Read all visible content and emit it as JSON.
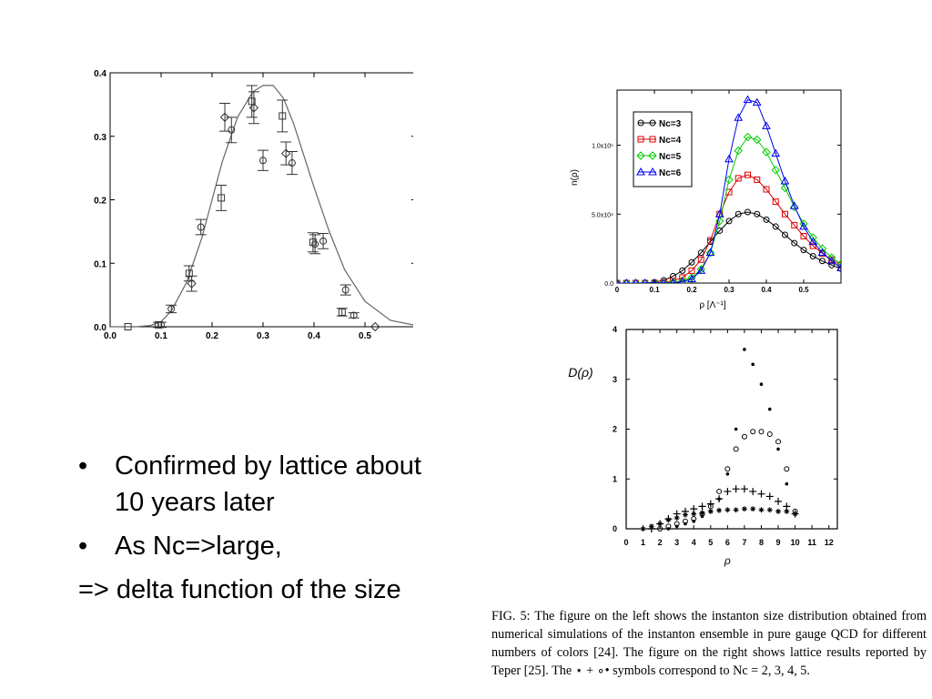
{
  "bullets": {
    "items": [
      "Confirmed by lattice about 10 years later",
      "As Nc=>large,"
    ],
    "tail": "=> delta function of the size"
  },
  "caption": "FIG. 5: The figure on the left shows the instanton size distribution obtained from numerical simulations of the instanton ensemble in pure gauge QCD for different numbers of colors [24]. The figure on the right shows lattice results reported by Teper [25]. The ⋆ + ∘• symbols correspond to Nc = 2, 3, 4, 5.",
  "chart_data": [
    {
      "type": "scatter",
      "title": "",
      "xlabel": "",
      "ylabel": "",
      "xlim": [
        0,
        0.6
      ],
      "ylim": [
        0,
        0.4
      ],
      "xticks": [
        "0.0",
        "0.1",
        "0.2",
        "0.3",
        "0.4",
        "0.5"
      ],
      "yticks": [
        "0.0",
        "0.1",
        "0.2",
        "0.3",
        "0.4"
      ],
      "curve": {
        "x": [
          0.0,
          0.05,
          0.08,
          0.1,
          0.12,
          0.15,
          0.18,
          0.2,
          0.22,
          0.25,
          0.28,
          0.3,
          0.32,
          0.34,
          0.36,
          0.38,
          0.4,
          0.43,
          0.46,
          0.5,
          0.55,
          0.6
        ],
        "y": [
          0.0,
          0.0,
          0.002,
          0.008,
          0.025,
          0.07,
          0.14,
          0.2,
          0.26,
          0.33,
          0.37,
          0.38,
          0.38,
          0.36,
          0.32,
          0.27,
          0.22,
          0.15,
          0.09,
          0.04,
          0.01,
          0.002
        ]
      },
      "points": [
        {
          "x": 0.035,
          "y": 0.0,
          "err": 0.0,
          "m": "square"
        },
        {
          "x": 0.095,
          "y": 0.003,
          "err": 0.004,
          "m": "square"
        },
        {
          "x": 0.1,
          "y": 0.003,
          "err": 0.004,
          "m": "circle"
        },
        {
          "x": 0.12,
          "y": 0.028,
          "err": 0.006,
          "m": "circle"
        },
        {
          "x": 0.155,
          "y": 0.084,
          "err": 0.012,
          "m": "square"
        },
        {
          "x": 0.16,
          "y": 0.068,
          "err": 0.012,
          "m": "diamond"
        },
        {
          "x": 0.178,
          "y": 0.157,
          "err": 0.012,
          "m": "circle"
        },
        {
          "x": 0.218,
          "y": 0.203,
          "err": 0.02,
          "m": "square"
        },
        {
          "x": 0.225,
          "y": 0.33,
          "err": 0.022,
          "m": "diamond"
        },
        {
          "x": 0.238,
          "y": 0.31,
          "err": 0.02,
          "m": "circle"
        },
        {
          "x": 0.278,
          "y": 0.355,
          "err": 0.025,
          "m": "square"
        },
        {
          "x": 0.282,
          "y": 0.345,
          "err": 0.025,
          "m": "diamond"
        },
        {
          "x": 0.3,
          "y": 0.262,
          "err": 0.016,
          "m": "circle"
        },
        {
          "x": 0.338,
          "y": 0.332,
          "err": 0.025,
          "m": "square"
        },
        {
          "x": 0.345,
          "y": 0.273,
          "err": 0.018,
          "m": "diamond"
        },
        {
          "x": 0.357,
          "y": 0.258,
          "err": 0.018,
          "m": "circle"
        },
        {
          "x": 0.398,
          "y": 0.133,
          "err": 0.015,
          "m": "square"
        },
        {
          "x": 0.402,
          "y": 0.13,
          "err": 0.015,
          "m": "circle"
        },
        {
          "x": 0.418,
          "y": 0.135,
          "err": 0.012,
          "m": "circle"
        },
        {
          "x": 0.455,
          "y": 0.023,
          "err": 0.006,
          "m": "square"
        },
        {
          "x": 0.462,
          "y": 0.058,
          "err": 0.008,
          "m": "circle"
        },
        {
          "x": 0.478,
          "y": 0.018,
          "err": 0.004,
          "m": "circle"
        },
        {
          "x": 0.52,
          "y": 0.0,
          "err": 0.0,
          "m": "diamond"
        }
      ]
    },
    {
      "type": "line",
      "title": "",
      "xlabel": "ρ [Λ⁻¹]",
      "ylabel": "n(ρ)",
      "xlim": [
        0,
        0.6
      ],
      "ylim": [
        0,
        140000
      ],
      "xticks": [
        "0",
        "0.1",
        "0.2",
        "0.3",
        "0.4",
        "0.5"
      ],
      "yticks": [
        {
          "v": 0,
          "label": "0.0"
        },
        {
          "v": 50000,
          "label": "5.0x10⁴"
        },
        {
          "v": 100000,
          "label": "1.0x10⁵"
        }
      ],
      "legend_position": "top-left",
      "x": [
        0,
        0.025,
        0.05,
        0.075,
        0.1,
        0.125,
        0.15,
        0.175,
        0.2,
        0.225,
        0.25,
        0.275,
        0.3,
        0.325,
        0.35,
        0.375,
        0.4,
        0.425,
        0.45,
        0.475,
        0.5,
        0.525,
        0.55,
        0.575,
        0.6
      ],
      "series": [
        {
          "name": "Nc=3",
          "color": "#000000",
          "marker": "circle",
          "values": [
            0,
            0,
            0,
            100,
            600,
            2000,
            5000,
            9000,
            15000,
            22000,
            30000,
            38000,
            45000,
            50000,
            51500,
            50000,
            46000,
            41000,
            35000,
            29000,
            24000,
            19500,
            16000,
            13000,
            10500
          ]
        },
        {
          "name": "Nc=4",
          "color": "#dd0000",
          "marker": "square",
          "values": [
            0,
            0,
            0,
            0,
            100,
            500,
            1500,
            4000,
            9000,
            17000,
            31000,
            50000,
            66000,
            76000,
            78500,
            75000,
            68000,
            59000,
            50000,
            42000,
            34000,
            27000,
            21500,
            17000,
            13000
          ]
        },
        {
          "name": "Nc=5",
          "color": "#00cc00",
          "marker": "diamond",
          "values": [
            0,
            0,
            0,
            0,
            0,
            100,
            500,
            1500,
            4000,
            10000,
            22000,
            45000,
            75000,
            96000,
            106000,
            104000,
            95000,
            82000,
            69000,
            55000,
            43000,
            33000,
            25000,
            18500,
            14000
          ]
        },
        {
          "name": "Nc=6",
          "color": "#0000ee",
          "marker": "triangle",
          "values": [
            0,
            0,
            0,
            0,
            0,
            0,
            200,
            1000,
            3000,
            9000,
            22000,
            50000,
            90000,
            120000,
            133000,
            131000,
            114000,
            94000,
            74000,
            56000,
            41000,
            30000,
            22000,
            16000,
            11000
          ]
        }
      ]
    },
    {
      "type": "scatter",
      "title": "",
      "xlabel": "ρ",
      "ylabel": "D(ρ)",
      "xlim": [
        0,
        12.5
      ],
      "ylim": [
        0,
        4
      ],
      "xticks": [
        "0",
        "1",
        "2",
        "3",
        "4",
        "5",
        "6",
        "7",
        "8",
        "9",
        "10",
        "11",
        "12"
      ],
      "yticks": [
        "0",
        "1",
        "2",
        "3",
        "4"
      ],
      "series": [
        {
          "name": "",
          "marker": "star",
          "x": [
            1,
            1.5,
            2,
            2.5,
            3,
            3.5,
            4,
            4.5,
            5,
            5.5,
            6,
            6.5,
            7,
            7.5,
            8,
            8.5,
            9,
            9.5,
            10
          ],
          "y": [
            0,
            0.05,
            0.1,
            0.18,
            0.22,
            0.28,
            0.3,
            0.32,
            0.35,
            0.37,
            0.38,
            0.38,
            0.4,
            0.4,
            0.38,
            0.38,
            0.35,
            0.35,
            0.3
          ]
        },
        {
          "name": "",
          "marker": "plus",
          "x": [
            1.5,
            2,
            2.5,
            3,
            3.5,
            4,
            4.5,
            5,
            5.5,
            6,
            6.5,
            7,
            7.5,
            8,
            8.5,
            9,
            9.5,
            10
          ],
          "y": [
            0,
            0.1,
            0.2,
            0.3,
            0.35,
            0.4,
            0.45,
            0.5,
            0.6,
            0.75,
            0.8,
            0.8,
            0.75,
            0.7,
            0.65,
            0.55,
            0.45,
            0.3
          ]
        },
        {
          "name": "",
          "marker": "ocircle",
          "x": [
            2,
            2.5,
            3,
            3.5,
            4,
            4.5,
            5,
            5.5,
            6,
            6.5,
            7,
            7.5,
            8,
            8.5,
            9,
            9.5,
            10
          ],
          "y": [
            0,
            0.05,
            0.1,
            0.15,
            0.2,
            0.3,
            0.45,
            0.75,
            1.2,
            1.6,
            1.85,
            1.95,
            1.95,
            1.9,
            1.75,
            1.2,
            0.35
          ]
        },
        {
          "name": "",
          "marker": "dot",
          "x": [
            2.5,
            3,
            3.5,
            4,
            4.5,
            5,
            5.5,
            6,
            6.5,
            7,
            7.5,
            8,
            8.5,
            9,
            9.5,
            10
          ],
          "y": [
            0,
            0.05,
            0.1,
            0.15,
            0.25,
            0.35,
            0.6,
            1.1,
            2,
            3.6,
            3.3,
            2.9,
            2.4,
            1.6,
            0.9,
            0.3
          ]
        }
      ]
    }
  ]
}
